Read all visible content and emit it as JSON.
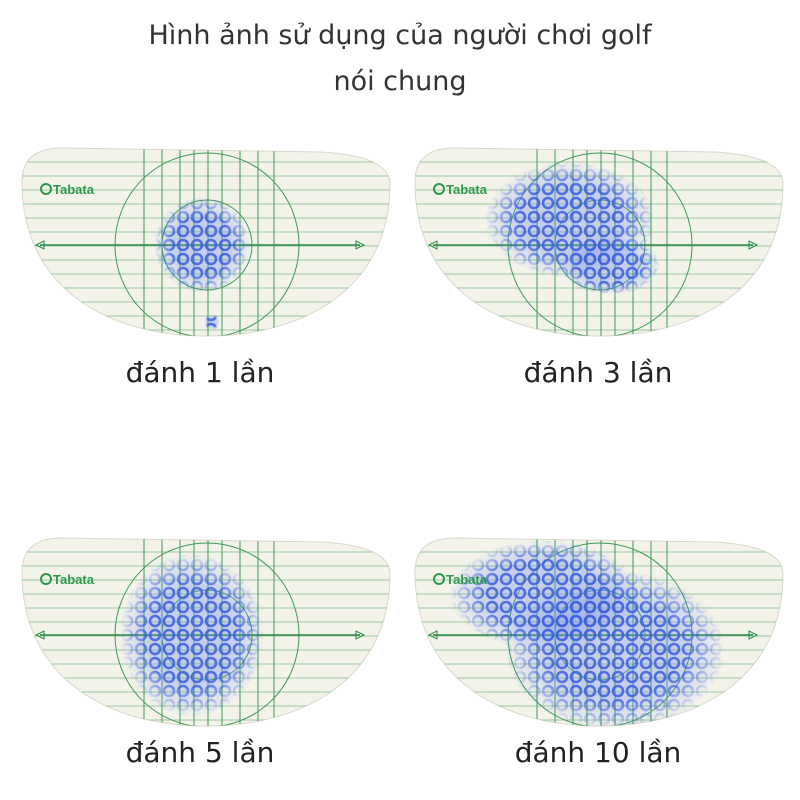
{
  "header": {
    "title_lines": [
      "Hình ảnh sử dụng của người chơi golf",
      "nói chung"
    ]
  },
  "panels": [
    {
      "brand": "Tabata",
      "caption": "đánh 1 lần"
    },
    {
      "brand": "Tabata",
      "caption": "đánh 3 lần"
    },
    {
      "brand": "Tabata",
      "caption": "đánh 5 lần"
    },
    {
      "brand": "Tabata",
      "caption": "đánh 10 lần"
    }
  ]
}
